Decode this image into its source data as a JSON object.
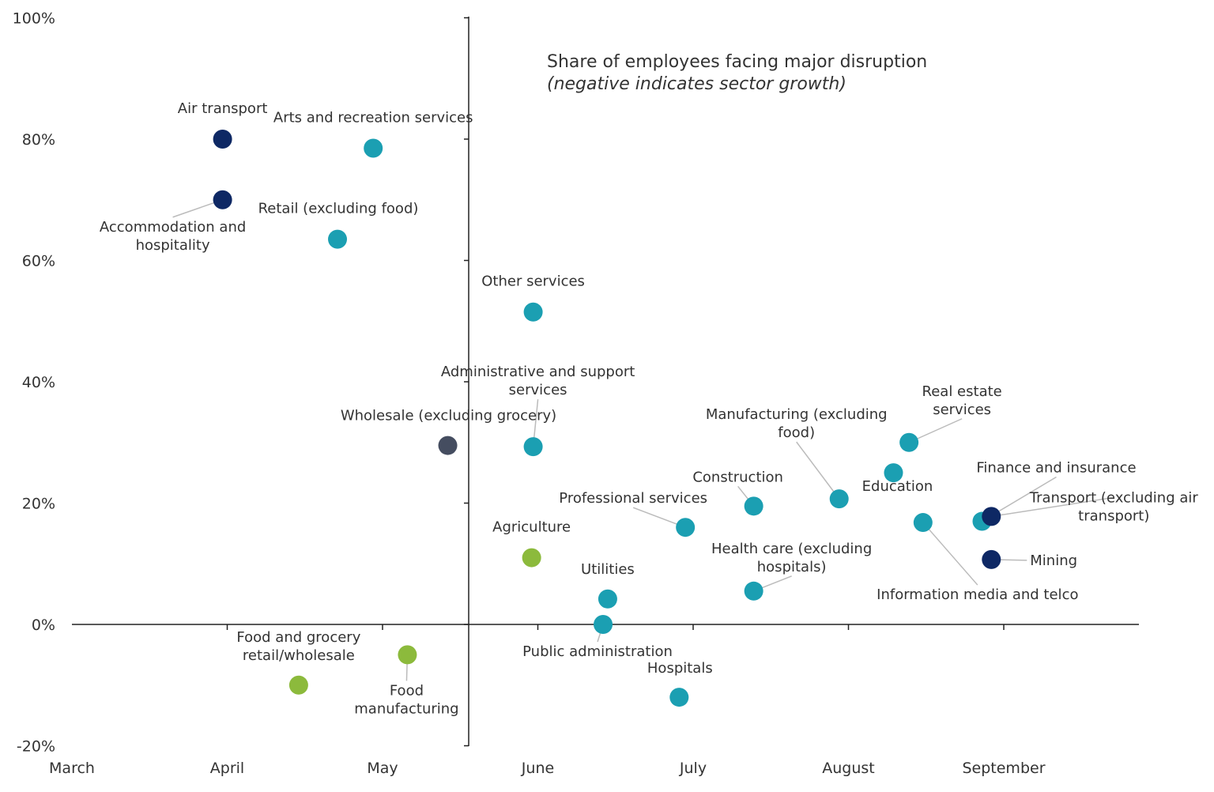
{
  "chart_data": {
    "type": "scatter",
    "title": "Share of employees facing major disruption",
    "subtitle": "(negative indicates sector growth)",
    "xlabel": "",
    "ylabel": "",
    "x_ticks": [
      "March",
      "April",
      "May",
      "June",
      "July",
      "August",
      "September"
    ],
    "y_ticks": [
      "100%",
      "80%",
      "60%",
      "40%",
      "20%",
      "0%",
      "-20%"
    ],
    "ylim": [
      -20,
      100
    ],
    "xlim": [
      0,
      6.9
    ],
    "grid": false,
    "legend": "none",
    "colors": {
      "navy": "#0e2864",
      "teal": "#1b9fb2",
      "slate": "#454d60",
      "green": "#8cba3c"
    },
    "points": [
      {
        "name": "Air transport",
        "month": "April",
        "x": 0.97,
        "y": 80,
        "color": "navy"
      },
      {
        "name": "Accommodation and hospitality",
        "month": "April",
        "x": 0.97,
        "y": 70,
        "color": "navy"
      },
      {
        "name": "Arts and recreation services",
        "month": "April",
        "x": 1.94,
        "y": 78.5,
        "color": "teal"
      },
      {
        "name": "Retail (excluding food)",
        "month": "April",
        "x": 1.71,
        "y": 63.5,
        "color": "teal"
      },
      {
        "name": "Food and grocery retail/wholesale",
        "month": "April",
        "x": 1.46,
        "y": -10,
        "color": "green"
      },
      {
        "name": "Food manufacturing",
        "month": "May",
        "x": 2.16,
        "y": -5,
        "color": "green"
      },
      {
        "name": "Wholesale (excluding grocery)",
        "month": "May",
        "x": 2.42,
        "y": 29.5,
        "color": "slate"
      },
      {
        "name": "Other services",
        "month": "June",
        "x": 2.97,
        "y": 51.5,
        "color": "teal"
      },
      {
        "name": "Administrative and support services",
        "month": "June",
        "x": 2.97,
        "y": 29.3,
        "color": "teal"
      },
      {
        "name": "Agriculture",
        "month": "June",
        "x": 2.96,
        "y": 11,
        "color": "green"
      },
      {
        "name": "Utilities",
        "month": "June",
        "x": 3.45,
        "y": 4.2,
        "color": "teal"
      },
      {
        "name": "Public administration",
        "month": "June",
        "x": 3.42,
        "y": 0,
        "color": "teal"
      },
      {
        "name": "Professional services",
        "month": "July",
        "x": 3.95,
        "y": 16,
        "color": "teal"
      },
      {
        "name": "Hospitals",
        "month": "July",
        "x": 3.91,
        "y": -12,
        "color": "teal"
      },
      {
        "name": "Construction",
        "month": "July",
        "x": 4.39,
        "y": 19.5,
        "color": "teal"
      },
      {
        "name": "Health care (excluding hospitals)",
        "month": "July",
        "x": 4.39,
        "y": 5.5,
        "color": "teal"
      },
      {
        "name": "Manufacturing (excluding food)",
        "month": "August",
        "x": 4.94,
        "y": 20.7,
        "color": "teal"
      },
      {
        "name": "Education",
        "month": "August",
        "x": 5.29,
        "y": 25,
        "color": "teal"
      },
      {
        "name": "Real estate services",
        "month": "August",
        "x": 5.39,
        "y": 30,
        "color": "teal"
      },
      {
        "name": "Information media and telco",
        "month": "August",
        "x": 5.48,
        "y": 16.8,
        "color": "teal"
      },
      {
        "name": "Finance and insurance",
        "month": "September",
        "x": 5.86,
        "y": 17,
        "color": "teal"
      },
      {
        "name": "Transport (excluding air transport)",
        "month": "September",
        "x": 5.92,
        "y": 17.8,
        "color": "navy"
      },
      {
        "name": "Mining",
        "month": "September",
        "x": 5.92,
        "y": 10.7,
        "color": "navy"
      }
    ],
    "labels": [
      {
        "text": [
          "Air transport"
        ],
        "anchor": "middle",
        "dx": 0,
        "dy": -33
      },
      {
        "text": [
          "Accommodation and",
          "hospitality"
        ],
        "anchor": "middle",
        "dx": -63,
        "dy": 40,
        "leader": true
      },
      {
        "text": [
          "Arts and recreation services"
        ],
        "anchor": "middle",
        "dx": 0,
        "dy": -33
      },
      {
        "text": [
          "Retail (excluding food)"
        ],
        "anchor": "middle",
        "dx": 1,
        "dy": -33
      },
      {
        "text": [
          "Food and grocery",
          "retail/wholesale"
        ],
        "anchor": "middle",
        "dx": 0,
        "dy": -55
      },
      {
        "text": [
          "Food",
          "manufacturing"
        ],
        "anchor": "middle",
        "dx": -1,
        "dy": 51,
        "leader": true
      },
      {
        "text": [
          "Wholesale (excluding grocery)"
        ],
        "anchor": "middle",
        "dx": 1,
        "dy": -32
      },
      {
        "text": [
          "Other services"
        ],
        "anchor": "middle",
        "dx": 0,
        "dy": -33
      },
      {
        "text": [
          "Administrative and support",
          "services"
        ],
        "anchor": "middle",
        "dx": 6,
        "dy": -89,
        "leader": true
      },
      {
        "text": [
          "Agriculture"
        ],
        "anchor": "middle",
        "dx": 0,
        "dy": -33
      },
      {
        "text": [
          "Utilities"
        ],
        "anchor": "middle",
        "dx": 0,
        "dy": -32
      },
      {
        "text": [
          "Public administration"
        ],
        "anchor": "middle",
        "dx": -7,
        "dy": 40,
        "leader": true
      },
      {
        "text": [
          "Professional services"
        ],
        "anchor": "middle",
        "dx": -66,
        "dy": -31,
        "leader": true
      },
      {
        "text": [
          "Hospitals"
        ],
        "anchor": "middle",
        "dx": 1,
        "dy": -31
      },
      {
        "text": [
          "Construction"
        ],
        "anchor": "middle",
        "dx": -20,
        "dy": -31,
        "leader": true
      },
      {
        "text": [
          "Health care (excluding",
          "hospitals)"
        ],
        "anchor": "middle",
        "dx": 48,
        "dy": -48,
        "leader": true
      },
      {
        "text": [
          "Manufacturing (excluding",
          "food)"
        ],
        "anchor": "middle",
        "dx": -54,
        "dy": -101,
        "leader": true
      },
      {
        "text": [
          "Education"
        ],
        "anchor": "middle",
        "dx": 5,
        "dy": 23
      },
      {
        "text": [
          "Real estate",
          "services"
        ],
        "anchor": "middle",
        "dx": 67,
        "dy": -59,
        "leader": true
      },
      {
        "text": [
          "Information media and telco"
        ],
        "anchor": "middle",
        "dx": 69,
        "dy": 97,
        "leader": true
      },
      {
        "text": [
          "Finance and insurance"
        ],
        "anchor": "middle",
        "dx": 94,
        "dy": -62,
        "leader": true
      },
      {
        "text": [
          "Transport (excluding air",
          "transport)"
        ],
        "anchor": "middle",
        "dx": 155,
        "dy": -18,
        "leader": true
      },
      {
        "text": [
          "Mining"
        ],
        "anchor": "start",
        "dx": 49,
        "dy": 7,
        "leader": true
      }
    ]
  }
}
